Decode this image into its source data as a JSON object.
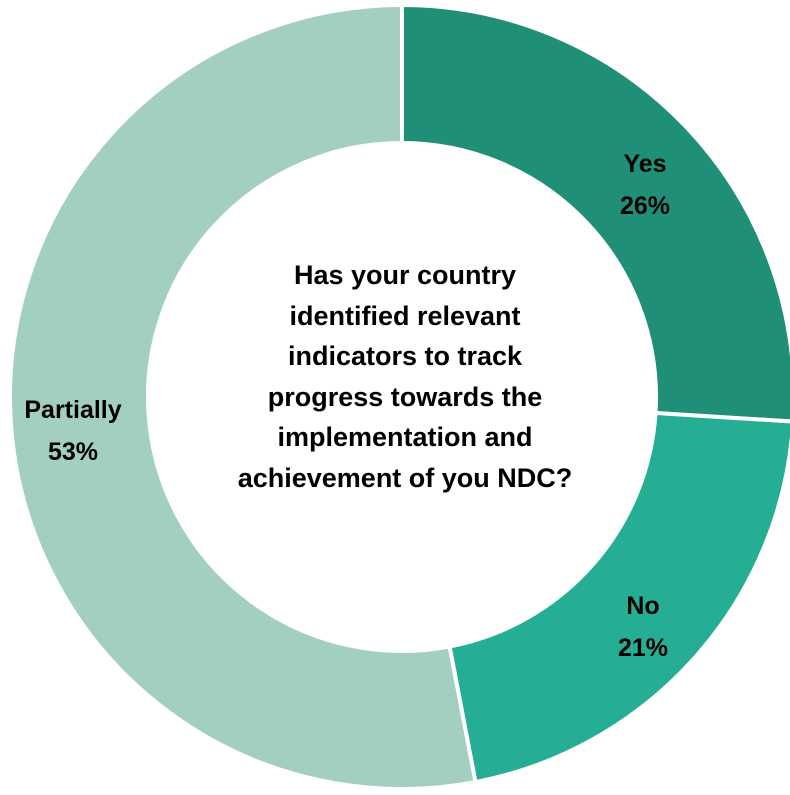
{
  "chart_data": {
    "type": "pie",
    "variant": "donut",
    "center_text_lines": [
      "Has your country",
      "identified relevant",
      "indicators to track",
      "progress towards the",
      "implementation and",
      "achievement of you NDC?"
    ],
    "slices": [
      {
        "name": "Yes",
        "value": 26,
        "label": "26%",
        "color": "#1f8f78"
      },
      {
        "name": "No",
        "value": 21,
        "label": "21%",
        "color": "#26ae94"
      },
      {
        "name": "Partially",
        "value": 53,
        "label": "53%",
        "color": "#a3cfc3"
      }
    ]
  }
}
